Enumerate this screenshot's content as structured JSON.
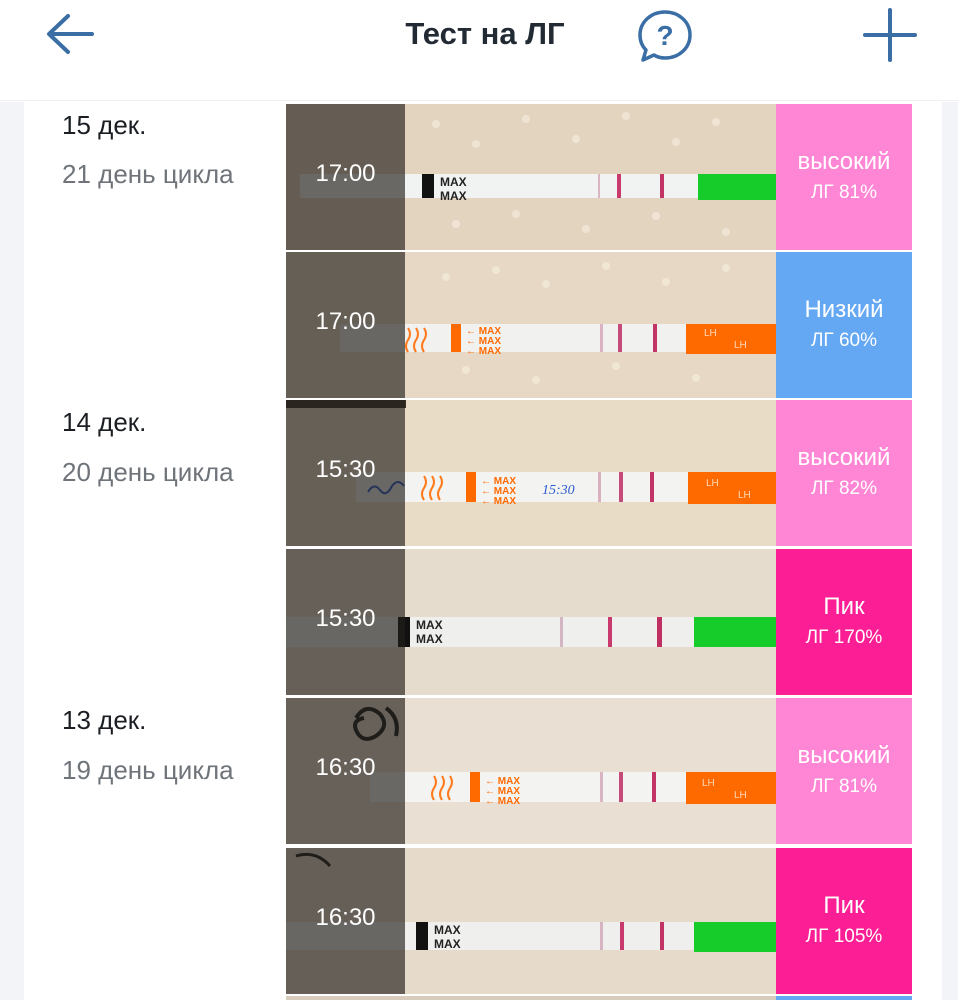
{
  "header": {
    "title": "Тест на ЛГ",
    "back_icon": "arrow-left-icon",
    "help_icon": "question-chat-icon",
    "add_icon": "plus-icon",
    "accent_color": "#3a6ea5"
  },
  "groups": [
    {
      "date": "15 дек.",
      "cycle": "21 день цикла"
    },
    {
      "date": "14 дек.",
      "cycle": "20 день цикла"
    },
    {
      "date": "13 дек.",
      "cycle": "19 день цикла"
    }
  ],
  "tests": [
    {
      "time": "17:00",
      "level": "высокий",
      "percent": "ЛГ 81%",
      "color": "#ff86d5",
      "strip": "green"
    },
    {
      "time": "17:00",
      "level": "Низкий",
      "percent": "ЛГ 60%",
      "color": "#64a8f4",
      "strip": "orange"
    },
    {
      "time": "15:30",
      "level": "высокий",
      "percent": "ЛГ 82%",
      "color": "#ff86d5",
      "strip": "orange",
      "handwritten": "15:30"
    },
    {
      "time": "15:30",
      "level": "Пик",
      "percent": "ЛГ 170%",
      "color": "#fc1e94",
      "strip": "green"
    },
    {
      "time": "16:30",
      "level": "высокий",
      "percent": "ЛГ 81%",
      "color": "#ff86d5",
      "strip": "orange"
    },
    {
      "time": "16:30",
      "level": "Пик",
      "percent": "ЛГ 105%",
      "color": "#fc1e94",
      "strip": "green"
    }
  ],
  "strip_labels": {
    "max": "MAX",
    "lh": "LH"
  }
}
